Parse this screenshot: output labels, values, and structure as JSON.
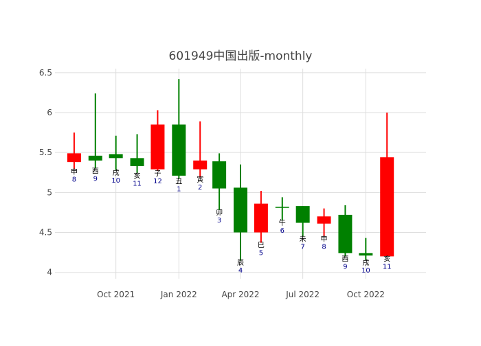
{
  "chart_data": {
    "type": "candlestick",
    "title": "601949中国出版-monthly",
    "xlabel": "",
    "ylabel": "",
    "ylim": [
      3.92,
      6.55
    ],
    "y_ticks": [
      "4",
      "4.5",
      "5",
      "5.5",
      "6",
      "6.5"
    ],
    "y_tick_values": [
      4,
      4.5,
      5,
      5.5,
      6,
      6.5
    ],
    "x_ticks": [
      "Oct 2021",
      "Jan 2022",
      "Apr 2022",
      "Jul 2022",
      "Oct 2022"
    ],
    "x_tick_dates": [
      "2021-10-01",
      "2022-01-01",
      "2022-04-01",
      "2022-07-01",
      "2022-10-01"
    ],
    "x_range": [
      "2021-07-04",
      "2022-12-28"
    ],
    "grid": true,
    "colors": {
      "up": "#ff0000",
      "down": "#008000",
      "label_branch": "#000000",
      "label_number": "#00008b"
    },
    "candles": [
      {
        "date": "2021-08-01",
        "open": 5.38,
        "close": 5.49,
        "high": 5.75,
        "low": 5.29,
        "branch": "申",
        "num": "8"
      },
      {
        "date": "2021-09-01",
        "open": 5.46,
        "close": 5.4,
        "high": 6.24,
        "low": 5.3,
        "branch": "酉",
        "num": "9"
      },
      {
        "date": "2021-10-01",
        "open": 5.48,
        "close": 5.43,
        "high": 5.71,
        "low": 5.28,
        "branch": "戌",
        "num": "10"
      },
      {
        "date": "2021-11-01",
        "open": 5.43,
        "close": 5.33,
        "high": 5.73,
        "low": 5.24,
        "branch": "亥",
        "num": "11"
      },
      {
        "date": "2021-12-01",
        "open": 5.29,
        "close": 5.85,
        "high": 6.03,
        "low": 5.27,
        "branch": "子",
        "num": "12"
      },
      {
        "date": "2022-01-01",
        "open": 5.85,
        "close": 5.21,
        "high": 6.42,
        "low": 5.17,
        "branch": "丑",
        "num": "1"
      },
      {
        "date": "2022-02-01",
        "open": 5.29,
        "close": 5.4,
        "high": 5.89,
        "low": 5.19,
        "branch": "寅",
        "num": "2"
      },
      {
        "date": "2022-03-01",
        "open": 5.39,
        "close": 5.05,
        "high": 5.49,
        "low": 4.78,
        "branch": "卯",
        "num": "3"
      },
      {
        "date": "2022-04-01",
        "open": 5.06,
        "close": 4.5,
        "high": 5.35,
        "low": 4.15,
        "branch": "辰",
        "num": "4"
      },
      {
        "date": "2022-05-01",
        "open": 4.5,
        "close": 4.86,
        "high": 5.02,
        "low": 4.37,
        "branch": "巳",
        "num": "5"
      },
      {
        "date": "2022-06-01",
        "open": 4.82,
        "close": 4.81,
        "high": 4.94,
        "low": 4.65,
        "branch": "午",
        "num": "6"
      },
      {
        "date": "2022-07-01",
        "open": 4.83,
        "close": 4.62,
        "high": 4.83,
        "low": 4.45,
        "branch": "未",
        "num": "7"
      },
      {
        "date": "2022-08-01",
        "open": 4.61,
        "close": 4.7,
        "high": 4.8,
        "low": 4.45,
        "branch": "申",
        "num": "8"
      },
      {
        "date": "2022-09-01",
        "open": 4.72,
        "close": 4.24,
        "high": 4.84,
        "low": 4.2,
        "branch": "酉",
        "num": "9"
      },
      {
        "date": "2022-10-01",
        "open": 4.24,
        "close": 4.21,
        "high": 4.43,
        "low": 4.15,
        "branch": "戌",
        "num": "10"
      },
      {
        "date": "2022-11-01",
        "open": 4.2,
        "close": 5.44,
        "high": 6.0,
        "low": 4.2,
        "branch": "亥",
        "num": "11"
      }
    ]
  }
}
